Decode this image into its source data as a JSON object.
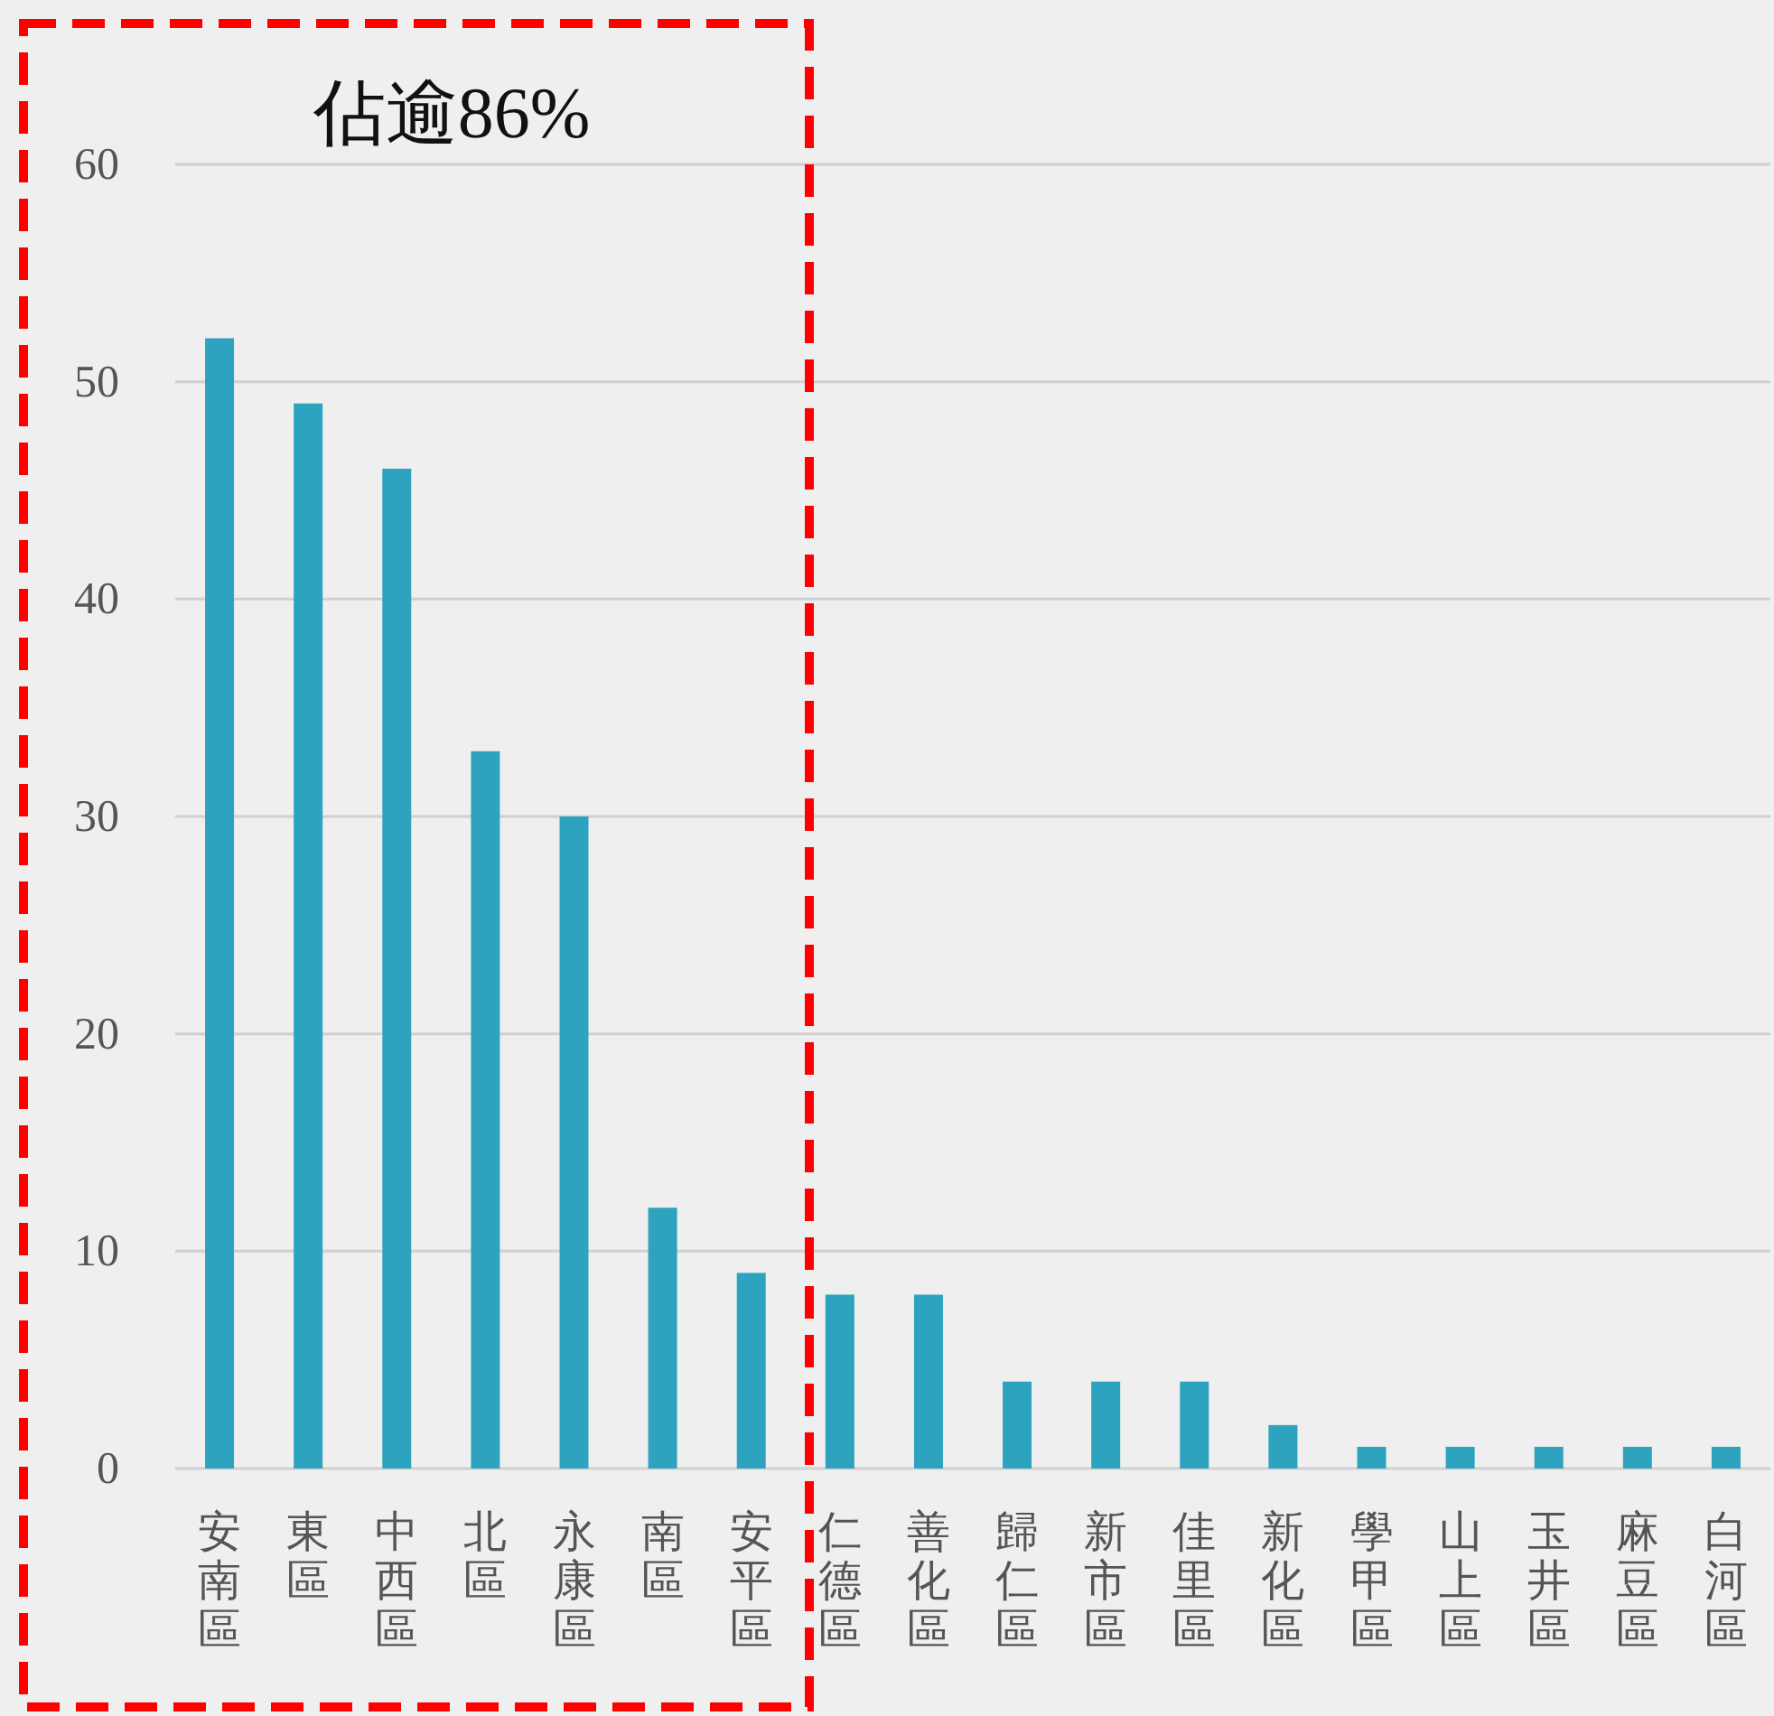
{
  "chart_data": {
    "type": "bar",
    "annotations": [
      "佔逾86%"
    ],
    "categories": [
      "安南區",
      "東區",
      "中西區",
      "北區",
      "永康區",
      "南區",
      "安平區",
      "仁德區",
      "善化區",
      "歸仁區",
      "新市區",
      "佳里區",
      "新化區",
      "學甲區",
      "山上區",
      "玉井區",
      "麻豆區",
      "白河區"
    ],
    "values": [
      52,
      49,
      46,
      33,
      30,
      12,
      9,
      8,
      8,
      4,
      4,
      4,
      2,
      1,
      1,
      1,
      1,
      1
    ],
    "color": "#2ea3c0",
    "ylim": [
      0,
      60
    ],
    "yticks": [
      0,
      10,
      20,
      30,
      40,
      50,
      60
    ],
    "grid": "y"
  }
}
